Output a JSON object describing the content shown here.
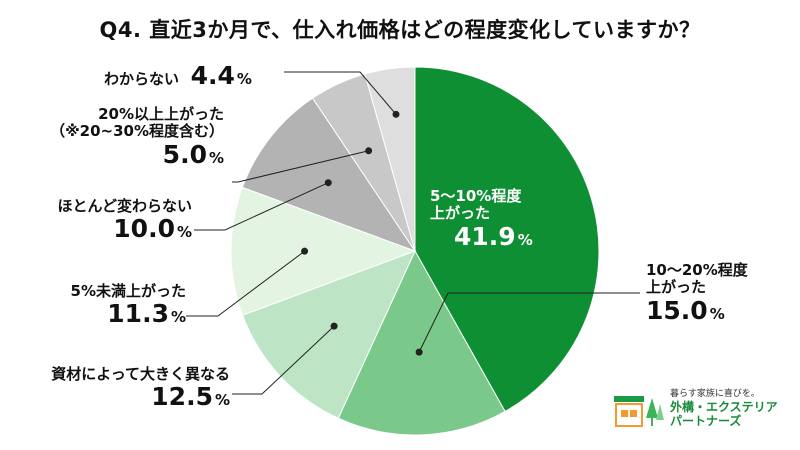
{
  "title": "Q4. 直近3か月で、仕入れ価格はどの程度変化していますか？",
  "chart_data": {
    "type": "pie",
    "title": "Q4. 直近3か月で、仕入れ価格はどの程度変化していますか？",
    "unit": "%",
    "slices": [
      {
        "label": "5～10%程度上がった",
        "value": 41.9,
        "color": "#0f8f34"
      },
      {
        "label": "10～20%程度上がった",
        "value": 15.0,
        "color": "#7ac98a"
      },
      {
        "label": "資材によって大きく異なる",
        "value": 12.5,
        "color": "#bde4c4"
      },
      {
        "label": "5%未満上がった",
        "value": 11.3,
        "color": "#e3f5e2"
      },
      {
        "label": "ほとんど変わらない",
        "value": 10.0,
        "color": "#b3b3b3"
      },
      {
        "label": "20%以上上がった（※20~30%程度含む）",
        "value": 5.0,
        "color": "#c8c8c8"
      },
      {
        "label": "わからない",
        "value": 4.4,
        "color": "#dedede"
      }
    ]
  },
  "labels": {
    "s0_line1": "5～10%程度",
    "s0_line2": "上がった",
    "s0_val": "41.9",
    "s1_line1": "10～20%程度",
    "s1_line2": "上がった",
    "s1_val": "15.0",
    "s2_line1": "資材によって大きく異なる",
    "s2_val": "12.5",
    "s3_line1": "5%未満上がった",
    "s3_val": "11.3",
    "s4_line1": "ほとんど変わらない",
    "s4_val": "10.0",
    "s5_line1": "20%以上上がった",
    "s5_line2": "（※20~30%程度含む）",
    "s5_val": "5.0",
    "s6_line1": "わからない",
    "s6_val": "4.4",
    "pct": "%"
  },
  "logo": {
    "tagline": "暮らす家族に喜びを。",
    "brand_line1": "外構・エクステリア",
    "brand_line2": "パートナーズ"
  }
}
